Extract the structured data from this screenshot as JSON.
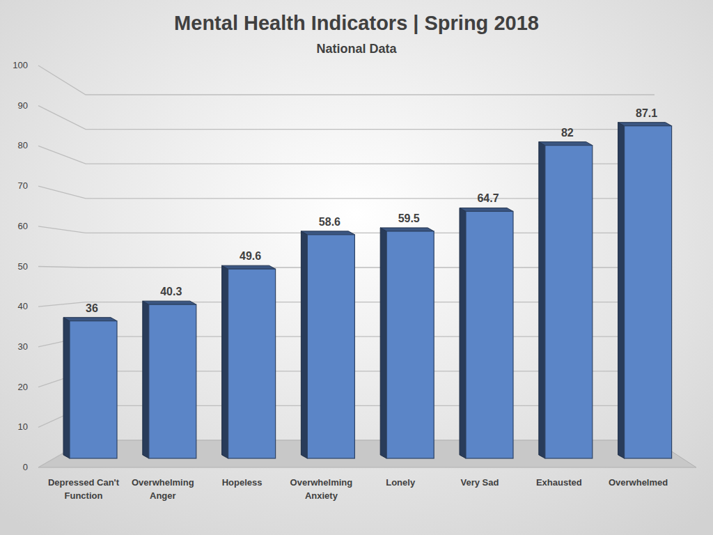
{
  "chart_data": {
    "type": "bar",
    "title": "Mental Health Indicators | Spring 2018",
    "subtitle": "National Data",
    "categories": [
      "Depressed Can't Function",
      "Overwhelming Anger",
      "Hopeless",
      "Overwhelming Anxiety",
      "Lonely",
      "Very Sad",
      "Exhausted",
      "Overwhelmed"
    ],
    "values": [
      36,
      40.3,
      49.6,
      58.6,
      59.5,
      64.7,
      82,
      87.1
    ],
    "color": "#5b85c7",
    "ylim": [
      0,
      100
    ],
    "yticks": [
      0,
      10,
      20,
      30,
      40,
      50,
      60,
      70,
      80,
      90,
      100
    ],
    "grid": true,
    "data_labels": true
  }
}
